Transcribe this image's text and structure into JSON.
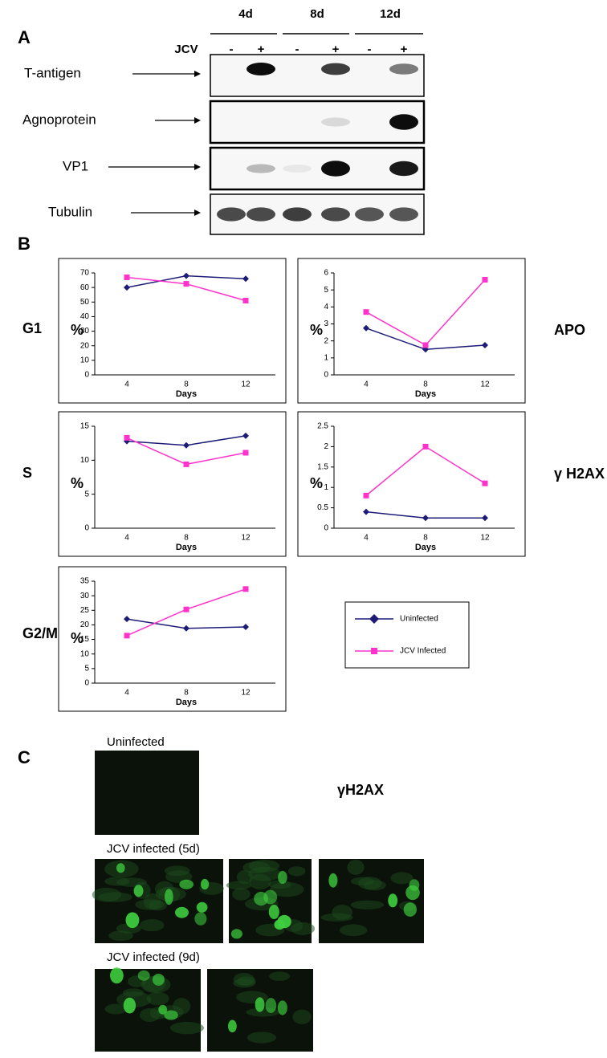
{
  "panel_a": {
    "label": "A",
    "timepoints": [
      "4d",
      "8d",
      "12d"
    ],
    "jcv_label": "JCV",
    "lane_signs": [
      "-",
      "+",
      "-",
      "+",
      "-",
      "+"
    ],
    "rows": [
      "T-antigen",
      "Agnoprotein",
      "VP1",
      "Tubulin"
    ]
  },
  "panel_b": {
    "label": "B"
  },
  "chart_data": [
    {
      "type": "line",
      "panel_label": "G1",
      "ylabel": "%",
      "xlabel": "Days",
      "categories": [
        "4",
        "8",
        "12"
      ],
      "ylim": [
        0,
        70
      ],
      "yticks": [
        0,
        10,
        20,
        30,
        40,
        50,
        60,
        70
      ],
      "series": [
        {
          "name": "Uninfected",
          "color": "#1c1c78",
          "marker": "diamond",
          "values": [
            60,
            68,
            66
          ]
        },
        {
          "name": "JCV Infected",
          "color": "#ff33cc",
          "marker": "square",
          "values": [
            67,
            62.5,
            51
          ]
        }
      ]
    },
    {
      "type": "line",
      "panel_label": "APO",
      "ylabel": "%",
      "xlabel": "Days",
      "categories": [
        "4",
        "8",
        "12"
      ],
      "ylim": [
        0,
        6
      ],
      "yticks": [
        0,
        1,
        2,
        3,
        4,
        5,
        6
      ],
      "series": [
        {
          "name": "Uninfected",
          "color": "#1c1c78",
          "marker": "diamond",
          "values": [
            2.75,
            1.5,
            1.75
          ]
        },
        {
          "name": "JCV Infected",
          "color": "#ff33cc",
          "marker": "square",
          "values": [
            3.7,
            1.75,
            5.6
          ]
        }
      ]
    },
    {
      "type": "line",
      "panel_label": "S",
      "ylabel": "%",
      "xlabel": "Days",
      "categories": [
        "4",
        "8",
        "12"
      ],
      "ylim": [
        0,
        15
      ],
      "yticks": [
        0,
        5,
        10,
        15
      ],
      "series": [
        {
          "name": "Uninfected",
          "color": "#1c1c78",
          "marker": "diamond",
          "values": [
            12.8,
            12.2,
            13.6
          ]
        },
        {
          "name": "JCV Infected",
          "color": "#ff33cc",
          "marker": "square",
          "values": [
            13.3,
            9.4,
            11.1
          ]
        }
      ]
    },
    {
      "type": "line",
      "panel_label": "γ H2AX",
      "ylabel": "%",
      "xlabel": "Days",
      "categories": [
        "4",
        "8",
        "12"
      ],
      "ylim": [
        0,
        2.5
      ],
      "yticks": [
        0,
        0.5,
        1,
        1.5,
        2,
        2.5
      ],
      "series": [
        {
          "name": "Uninfected",
          "color": "#1c1c78",
          "marker": "diamond",
          "values": [
            0.4,
            0.25,
            0.25
          ]
        },
        {
          "name": "JCV Infected",
          "color": "#ff33cc",
          "marker": "square",
          "values": [
            0.8,
            2.0,
            1.1
          ]
        }
      ]
    },
    {
      "type": "line",
      "panel_label": "G2/M",
      "ylabel": "%",
      "xlabel": "Days",
      "categories": [
        "4",
        "8",
        "12"
      ],
      "ylim": [
        0,
        35
      ],
      "yticks": [
        0,
        5,
        10,
        15,
        20,
        25,
        30,
        35
      ],
      "series": [
        {
          "name": "Uninfected",
          "color": "#1c1c78",
          "marker": "diamond",
          "values": [
            22,
            18.8,
            19.3
          ]
        },
        {
          "name": "JCV Infected",
          "color": "#ff33cc",
          "marker": "square",
          "values": [
            16.3,
            25.3,
            32.3
          ]
        }
      ]
    }
  ],
  "panel_c": {
    "label": "C",
    "stain": "γH2AX",
    "groups": [
      "Uninfected",
      "JCV infected (5d)",
      "JCV infected (9d)"
    ]
  }
}
